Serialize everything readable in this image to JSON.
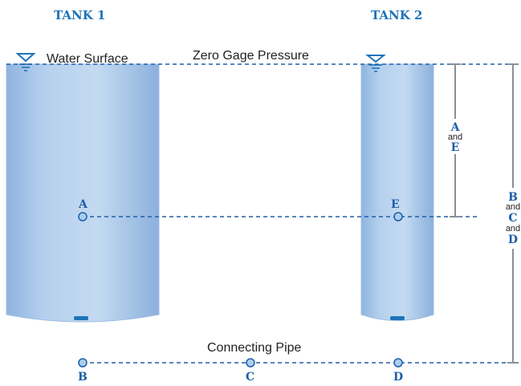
{
  "tank1_title": "TANK 1",
  "tank2_title": "TANK 2",
  "water_surface": "Water Surface",
  "zero_gage": "Zero Gage Pressure",
  "connecting_pipe": "Connecting Pipe",
  "points": {
    "A": "A",
    "E": "E",
    "B": "B",
    "C": "C",
    "D": "D"
  },
  "dim_AE": {
    "top": "A",
    "and": "and",
    "bottom": "E"
  },
  "dim_BCD": {
    "b": "B",
    "and1": "and",
    "c": "C",
    "and2": "and",
    "d": "D"
  },
  "colors": {
    "tank_fill": "#a9c9ea",
    "tank_edge": "#7fa8d6",
    "accent": "#1e73b8"
  }
}
